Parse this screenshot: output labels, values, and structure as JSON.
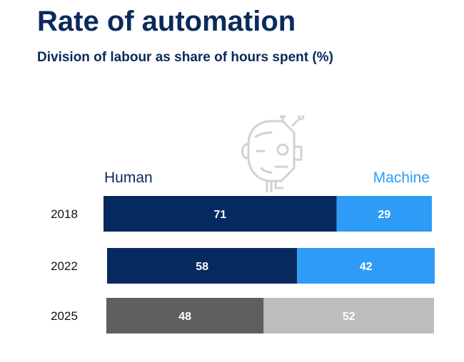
{
  "title": "Rate of automation",
  "subtitle": "Division of labour as share of hours spent (%)",
  "chart_data": {
    "type": "bar",
    "orientation": "horizontal",
    "stacked": true,
    "legend_labels": [
      "Human",
      "Machine"
    ],
    "categories": [
      "2018",
      "2022",
      "2025"
    ],
    "series": [
      {
        "name": "Human",
        "values": [
          71,
          58,
          48
        ]
      },
      {
        "name": "Machine",
        "values": [
          29,
          42,
          52
        ]
      }
    ],
    "colors": {
      "human": [
        "#062a5f",
        "#062a5f",
        "#5f5f5f"
      ],
      "machine": [
        "#2e9bf6",
        "#2e9bf6",
        "#bdbdbd"
      ]
    },
    "xlim": [
      0,
      100
    ],
    "grid": false,
    "legend_placement": "top"
  },
  "icon": "robot-human-face-icon",
  "colors": {
    "title": "#0b2a5b",
    "human_label": "#0b2a5b",
    "machine_label": "#2f9bf4"
  }
}
